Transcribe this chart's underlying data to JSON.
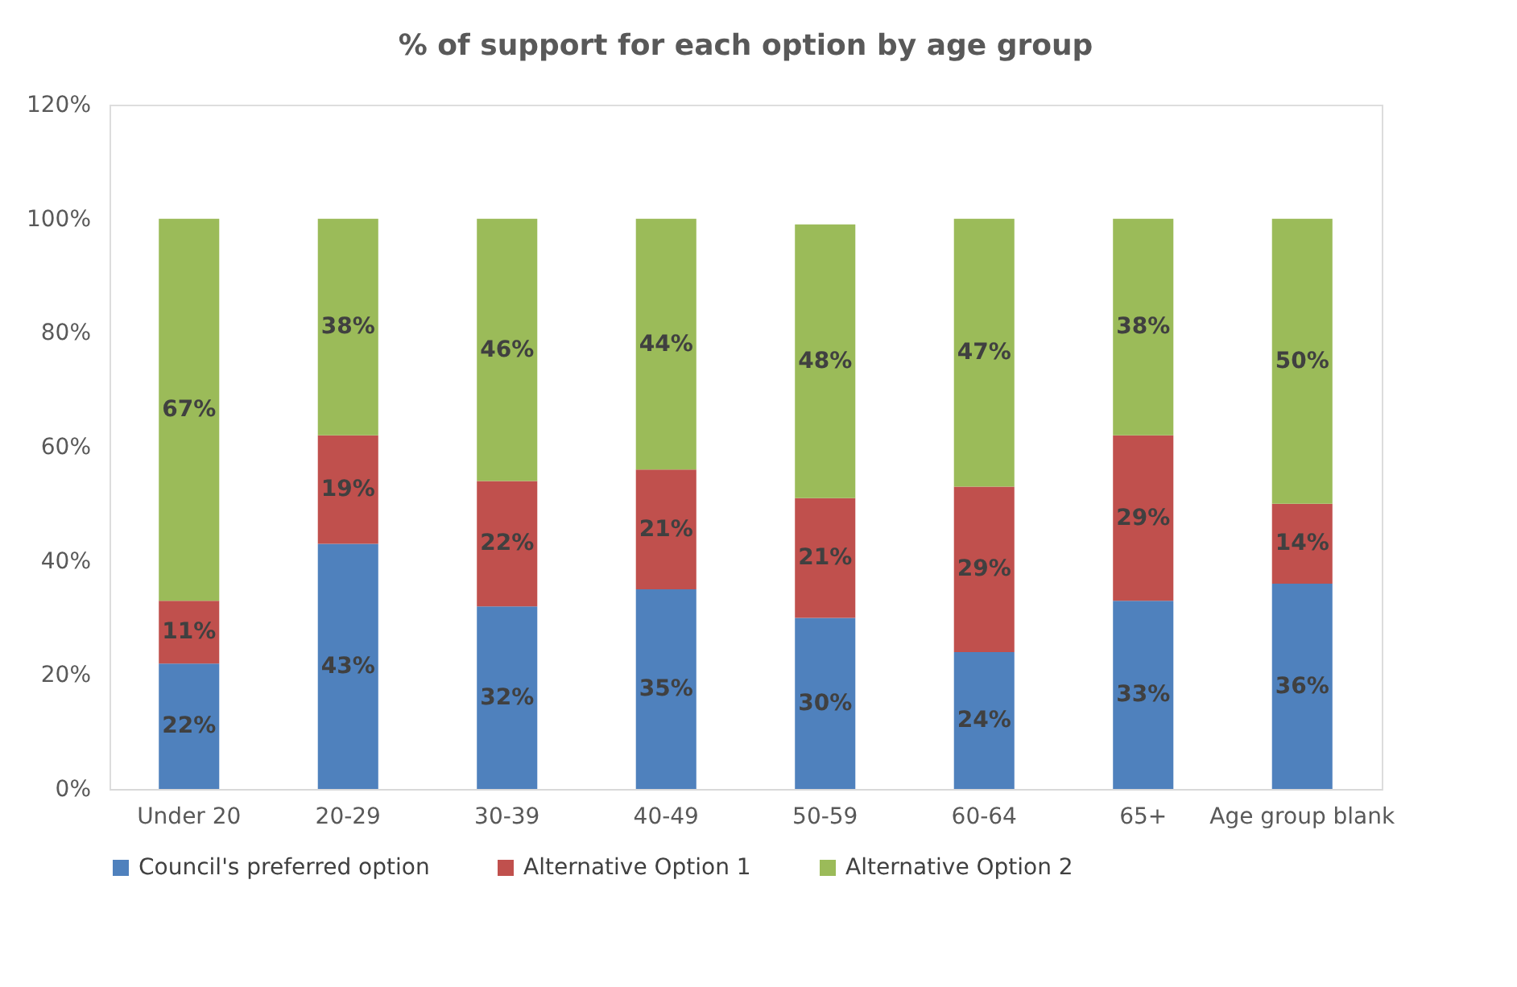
{
  "chart_data": {
    "type": "bar",
    "title": "% of support for each option by age group",
    "stacked": true,
    "categories": [
      "Under 20",
      "20-29",
      "30-39",
      "40-49",
      "50-59",
      "60-64",
      "65+",
      "Age group blank"
    ],
    "series": [
      {
        "name": "Council's preferred option",
        "color": "#4f81bd",
        "values": [
          22,
          43,
          32,
          35,
          30,
          24,
          33,
          36
        ],
        "value_labels": [
          "22%",
          "43%",
          "32%",
          "35%",
          "30%",
          "24%",
          "33%",
          "36%"
        ]
      },
      {
        "name": "Alternative Option 1",
        "color": "#c0504d",
        "values": [
          11,
          19,
          22,
          21,
          21,
          29,
          29,
          14
        ],
        "value_labels": [
          "11%",
          "19%",
          "22%",
          "21%",
          "21%",
          "29%",
          "29%",
          "14%"
        ]
      },
      {
        "name": "Alternative Option 2",
        "color": "#9bbb59",
        "values": [
          67,
          38,
          46,
          44,
          48,
          47,
          38,
          50
        ],
        "value_labels": [
          "67%",
          "38%",
          "46%",
          "44%",
          "48%",
          "47%",
          "38%",
          "50%"
        ]
      }
    ],
    "ylim": [
      0,
      120
    ],
    "yticks": [
      {
        "value": 0,
        "label": "0%"
      },
      {
        "value": 20,
        "label": "20%"
      },
      {
        "value": 40,
        "label": "40%"
      },
      {
        "value": 60,
        "label": "60%"
      },
      {
        "value": 80,
        "label": "80%"
      },
      {
        "value": 100,
        "label": "100%"
      },
      {
        "value": 120,
        "label": "120%"
      }
    ],
    "grid": false,
    "legend": "bottom"
  }
}
